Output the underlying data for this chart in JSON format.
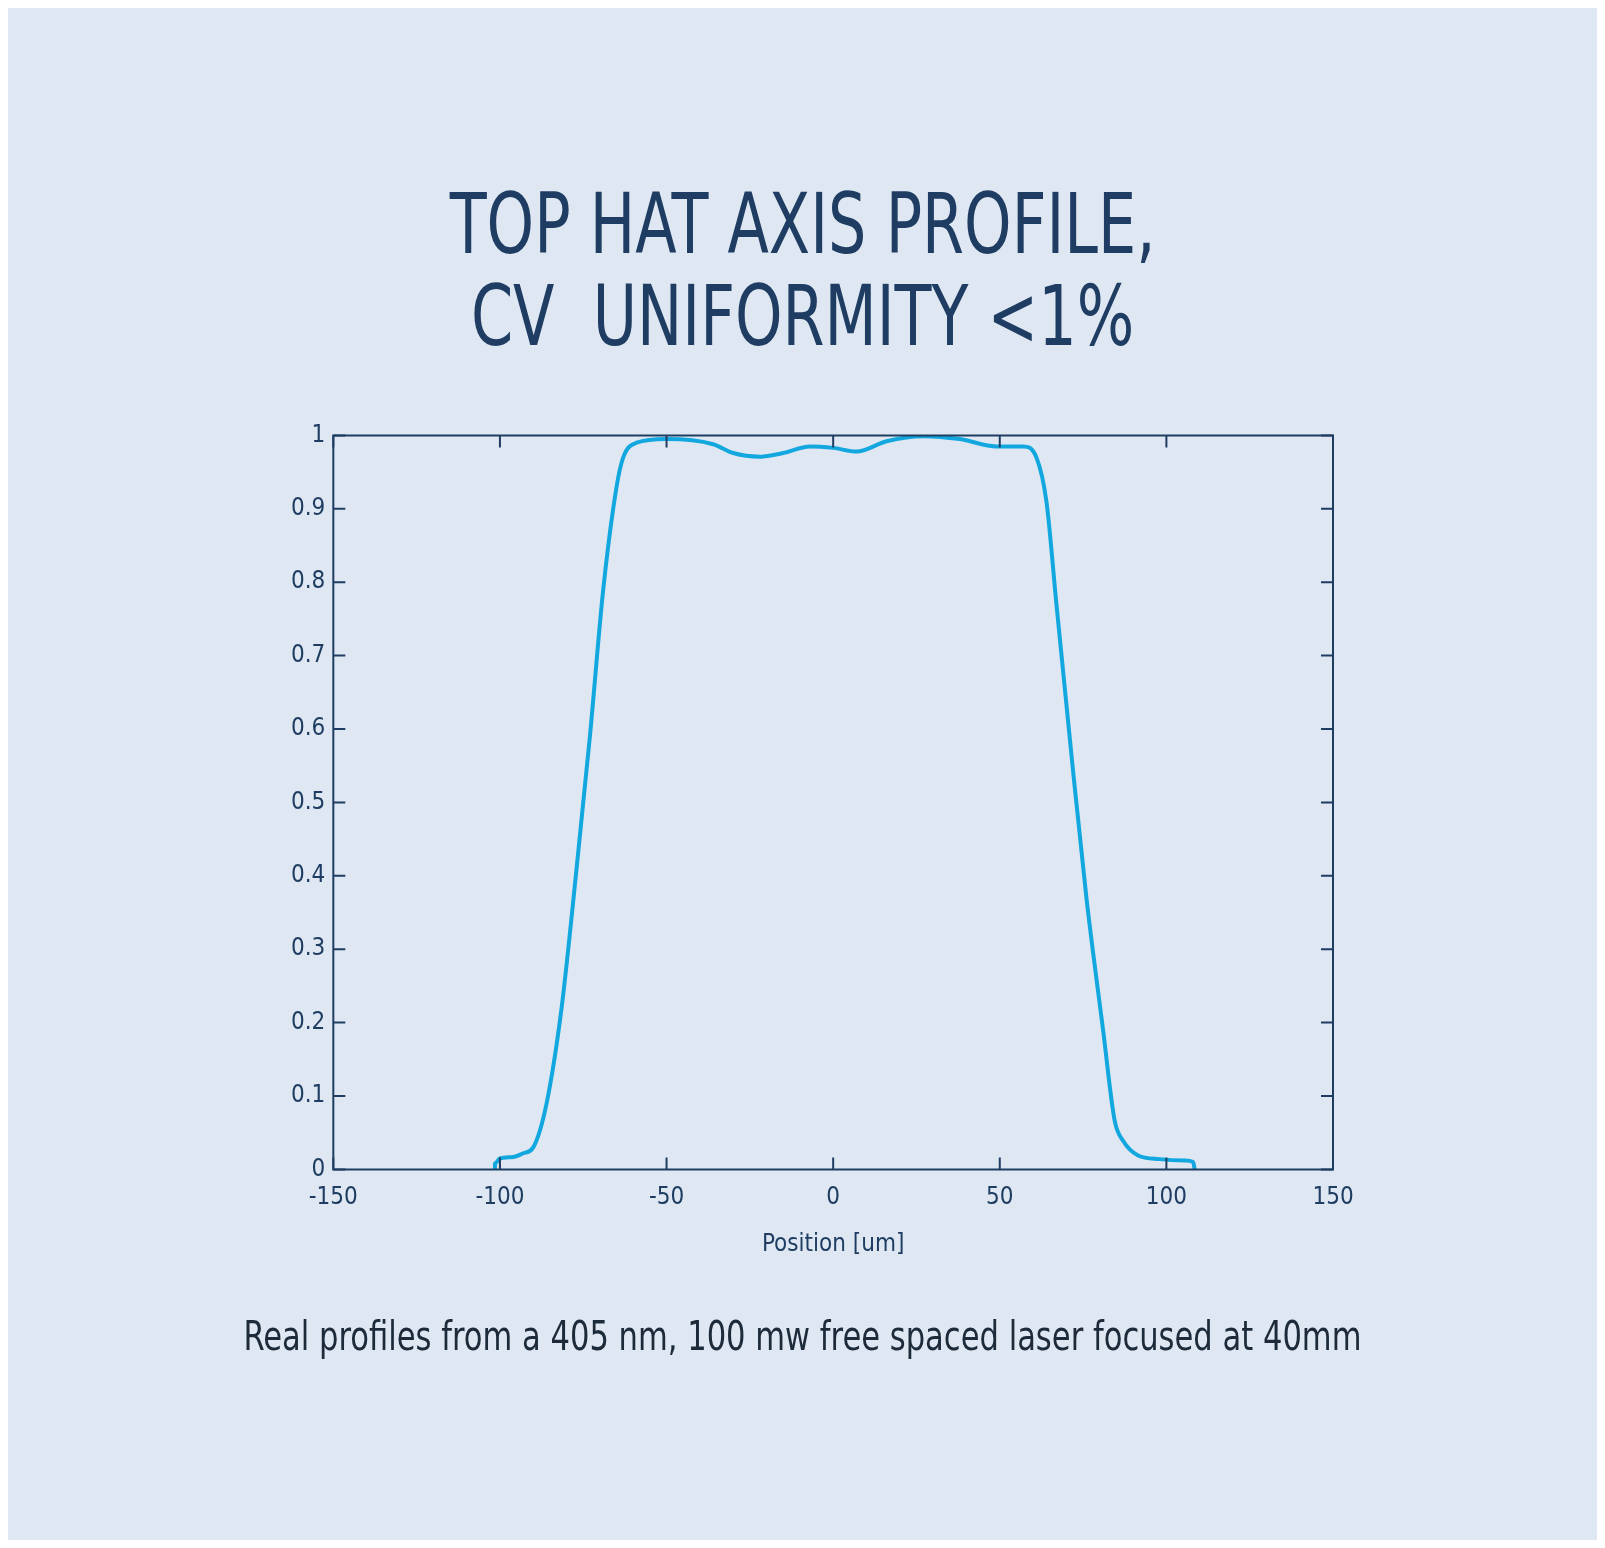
{
  "chart_data": {
    "type": "line",
    "title": "TOP HAT AXIS PROFILE,\nCV  UNIFORMITY <1%",
    "xlabel": "Position [um]",
    "series": [
      {
        "color": "#12a8df",
        "x": [
          -101.5,
          -101.5,
          -100,
          -96,
          -93,
          -90,
          -86,
          -81.5,
          -77,
          -73,
          -69,
          -65,
          -63,
          -59,
          -50,
          -36,
          -30,
          -22,
          -15,
          -7,
          0,
          7,
          16,
          27,
          38,
          49,
          57,
          61,
          64,
          67,
          71.5,
          76,
          81,
          84.5,
          87,
          91.5,
          98,
          105.5,
          108,
          108.5
        ],
        "values": [
          0,
          0.008,
          0.015,
          0.017,
          0.022,
          0.03,
          0.09,
          0.22,
          0.41,
          0.59,
          0.79,
          0.93,
          0.97,
          0.99,
          0.995,
          0.988,
          0.976,
          0.971,
          0.976,
          0.985,
          0.983,
          0.978,
          0.992,
          0.999,
          0.995,
          0.985,
          0.985,
          0.97,
          0.91,
          0.77,
          0.565,
          0.37,
          0.19,
          0.066,
          0.039,
          0.019,
          0.014,
          0.012,
          0.01,
          0
        ]
      }
    ],
    "xlim": [
      -150,
      150
    ],
    "xticks": [
      -150,
      -100,
      -50,
      0,
      50,
      100,
      150
    ],
    "ylim": [
      0,
      1
    ],
    "yticks": [
      0,
      0.1,
      0.2,
      0.3,
      0.4,
      0.5,
      0.6,
      0.7,
      0.8,
      0.9,
      1
    ],
    "grid": false,
    "legend": false,
    "marker": "none",
    "line_style": "solid",
    "annotations": [
      "Real profiles from a 405 nm, 100 mw free spaced laser focused at 40mm"
    ]
  }
}
